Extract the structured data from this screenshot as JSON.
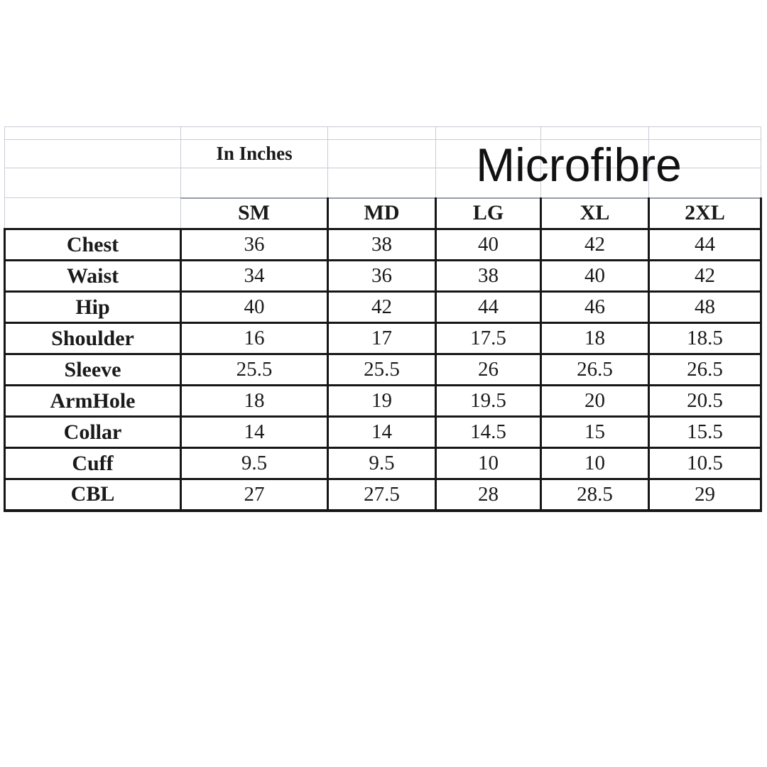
{
  "page": {
    "background_color": "#ffffff",
    "border_dark_color": "#161616",
    "border_faint_color": "#c9ccd5"
  },
  "header": {
    "unit_label": "In Inches",
    "title": "Microfibre"
  },
  "chart_data": {
    "type": "table",
    "title": "Microfibre",
    "subtitle": "In Inches",
    "columns": [
      "",
      "SM",
      "MD",
      "LG",
      "XL",
      "2XL"
    ],
    "size_columns": [
      "SM",
      "MD",
      "LG",
      "XL",
      "2XL"
    ],
    "rows": [
      {
        "label": "Chest",
        "values": [
          "36",
          "38",
          "40",
          "42",
          "44"
        ]
      },
      {
        "label": "Waist",
        "values": [
          "34",
          "36",
          "38",
          "40",
          "42"
        ]
      },
      {
        "label": "Hip",
        "values": [
          "40",
          "42",
          "44",
          "46",
          "48"
        ]
      },
      {
        "label": "Shoulder",
        "values": [
          "16",
          "17",
          "17.5",
          "18",
          "18.5"
        ]
      },
      {
        "label": "Sleeve",
        "values": [
          "25.5",
          "25.5",
          "26",
          "26.5",
          "26.5"
        ]
      },
      {
        "label": "ArmHole",
        "values": [
          "18",
          "19",
          "19.5",
          "20",
          "20.5"
        ]
      },
      {
        "label": "Collar",
        "values": [
          "14",
          "14",
          "14.5",
          "15",
          "15.5"
        ]
      },
      {
        "label": "Cuff",
        "values": [
          "9.5",
          "9.5",
          "10",
          "10",
          "10.5"
        ]
      },
      {
        "label": "CBL",
        "values": [
          "27",
          "27.5",
          "28",
          "28.5",
          "29"
        ]
      }
    ]
  }
}
